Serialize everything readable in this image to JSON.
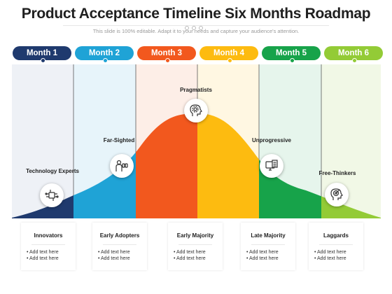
{
  "title": "Product Acceptance Timeline Six Months Roadmap",
  "subtitle": "This slide is 100% editable. Adapt it to your needs and capture your audience's attention.",
  "colors": {
    "month1": "#1f3a6e",
    "month2": "#1fa3d6",
    "month3": "#f2581e",
    "month4": "#fdbb10",
    "month5": "#17a34a",
    "month6": "#93cb36"
  },
  "months": [
    {
      "label": "Month 1"
    },
    {
      "label": "Month 2"
    },
    {
      "label": "Month 3"
    },
    {
      "label": "Month 4"
    },
    {
      "label": "Month 5"
    },
    {
      "label": "Month 6"
    }
  ],
  "stages": [
    {
      "label": "Technology  Experts",
      "icon": "network-chip-icon"
    },
    {
      "label": "Far-Sighted",
      "icon": "person-binoculars-icon"
    },
    {
      "label": "Pragmatists",
      "icon": "head-gear-icon"
    },
    {
      "label": "Unprogressive",
      "icon": "monitor-document-icon"
    },
    {
      "label": "Free-Thinkers",
      "icon": "head-target-icon"
    }
  ],
  "cards": [
    {
      "title": "Innovators",
      "items": [
        "• Add text here",
        "• Add text here"
      ]
    },
    {
      "title": "Early Adopters",
      "items": [
        "• Add text here",
        "• Add text here"
      ]
    },
    {
      "title": "Early Majority",
      "items": [
        "• Add text here",
        "• Add text here"
      ]
    },
    {
      "title": "Late Majority",
      "items": [
        "• Add text here",
        "• Add text here"
      ]
    },
    {
      "title": "Laggards",
      "items": [
        "• Add text here",
        "• Add text here"
      ]
    }
  ]
}
